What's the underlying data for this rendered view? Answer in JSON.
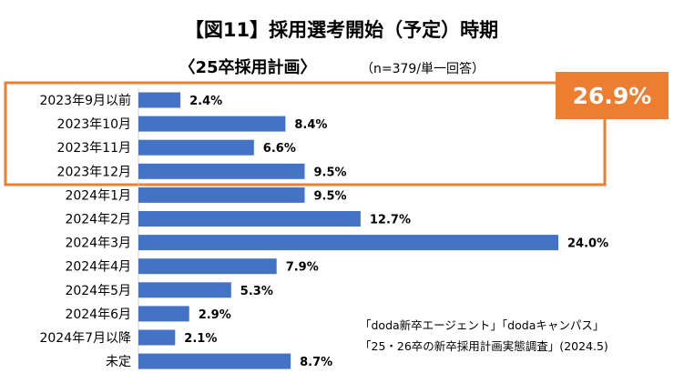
{
  "chart_data": {
    "type": "bar",
    "orientation": "horizontal",
    "title": "【図11】採用選考開始（予定）時期",
    "subtitle": "〈25卒採用計画〉",
    "subtitle_note": "（n=379/単一回答）",
    "categories": [
      "2023年9月以前",
      "2023年10月",
      "2023年11月",
      "2023年12月",
      "2024年1月",
      "2024年2月",
      "2024年3月",
      "2024年4月",
      "2024年5月",
      "2024年6月",
      "2024年7月以降",
      "未定"
    ],
    "values": [
      2.4,
      8.4,
      6.6,
      9.5,
      9.5,
      12.7,
      24.0,
      7.9,
      5.3,
      2.9,
      2.1,
      8.7
    ],
    "value_labels": [
      "2.4%",
      "8.4%",
      "6.6%",
      "9.5%",
      "9.5%",
      "12.7%",
      "24.0%",
      "7.9%",
      "5.3%",
      "2.9%",
      "2.1%",
      "8.7%"
    ],
    "xlim": [
      0,
      24.0
    ],
    "grid": false,
    "legend": "none",
    "bar_color": "#4472C4",
    "highlight": {
      "categories": [
        "2023年9月以前",
        "2023年10月",
        "2023年11月",
        "2023年12月"
      ],
      "label": "26.9%",
      "color": "#ED7D31"
    },
    "source_lines": [
      "「doda新卒エージェント」「dodaキャンパス」",
      "「25・26卒の新卒採用計画実態調査」(2024.5)"
    ]
  }
}
